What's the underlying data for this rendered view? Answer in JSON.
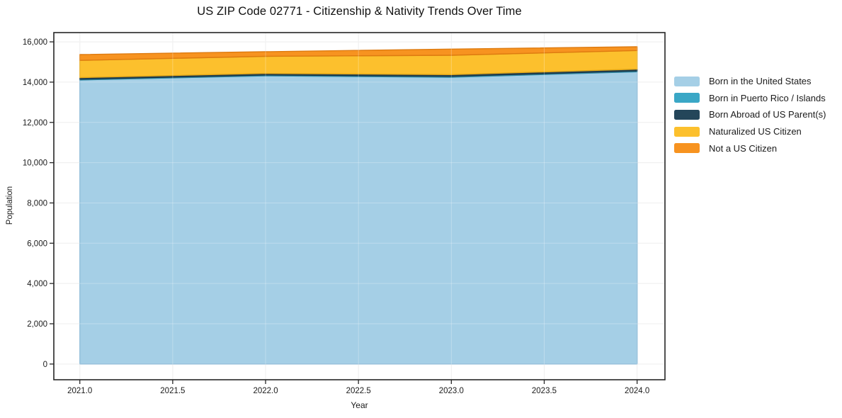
{
  "figure": {
    "background": "#ffffff"
  },
  "chart_data": {
    "type": "area",
    "stacked": true,
    "title": "US ZIP Code 02771 - Citizenship & Nativity Trends Over Time",
    "xlabel": "Year",
    "ylabel": "Population",
    "x": [
      2021,
      2022,
      2023,
      2024
    ],
    "series": [
      {
        "name": "Born in the United States",
        "color": "#a5cfe6",
        "edge": "#7fb3d2",
        "values": [
          14105,
          14315,
          14245,
          14515
        ]
      },
      {
        "name": "Born in Puerto Rico / Islands",
        "color": "#3aa7c6",
        "edge": "#2e8aa6",
        "values": [
          40,
          40,
          45,
          45
        ]
      },
      {
        "name": "Born Abroad of US Parent(s)",
        "color": "#24465a",
        "edge": "#1b3545",
        "values": [
          80,
          80,
          85,
          85
        ]
      },
      {
        "name": "Naturalized US Citizen",
        "color": "#fcc02d",
        "edge": "#e5a714",
        "values": [
          855,
          845,
          960,
          925
        ]
      },
      {
        "name": "Not a US Citizen",
        "color": "#f79320",
        "edge": "#de7b10",
        "values": [
          290,
          230,
          305,
          185
        ]
      }
    ],
    "totals": [
      15370,
      15510,
      15640,
      15755
    ],
    "xlim": [
      2020.86,
      2024.15
    ],
    "ylim": [
      -780,
      16460
    ],
    "x_ticks": {
      "values": [
        2021.0,
        2021.5,
        2022.0,
        2022.5,
        2023.0,
        2023.5,
        2024.0
      ],
      "labels": [
        "2021.0",
        "2021.5",
        "2022.0",
        "2022.5",
        "2023.0",
        "2023.5",
        "2024.0"
      ]
    },
    "y_ticks": {
      "values": [
        0,
        2000,
        4000,
        6000,
        8000,
        10000,
        12000,
        14000,
        16000
      ],
      "labels": [
        "0",
        "2,000",
        "4,000",
        "6,000",
        "8,000",
        "10,000",
        "12,000",
        "14,000",
        "16,000"
      ]
    },
    "grid": true,
    "legend_position": "right",
    "axis_color": "#262626",
    "grid_color": "#e9e9e9",
    "tick_label_color": "#1a1a1a"
  }
}
